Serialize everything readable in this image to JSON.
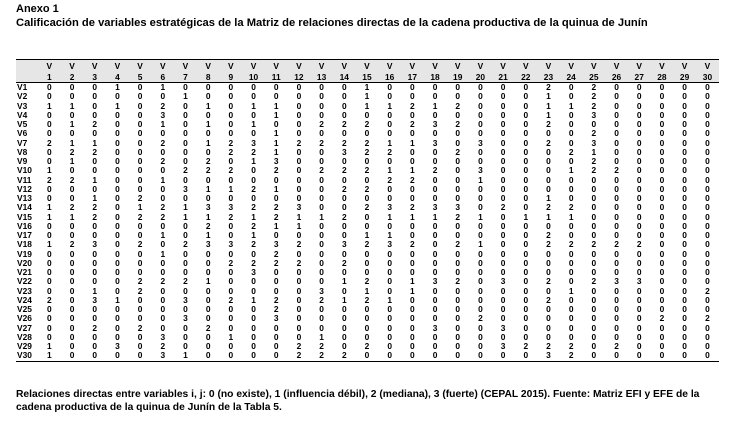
{
  "annex": "Anexo 1",
  "caption": "Calificación de variables estratégicas de la Matriz de relaciones directas de la cadena productiva de la quinua de Junín",
  "table": {
    "corner": "",
    "header_top": [
      "V",
      "V",
      "V",
      "V",
      "V",
      "V",
      "V",
      "V",
      "V",
      "V",
      "V",
      "V",
      "V",
      "V",
      "V",
      "V",
      "V",
      "V",
      "V",
      "V",
      "V",
      "V",
      "V",
      "V",
      "V",
      "V",
      "V",
      "V",
      "V",
      "V"
    ],
    "header_num": [
      "1",
      "2",
      "3",
      "4",
      "5",
      "6",
      "7",
      "8",
      "9",
      "10",
      "11",
      "12",
      "13",
      "14",
      "15",
      "16",
      "17",
      "18",
      "19",
      "20",
      "21",
      "22",
      "23",
      "24",
      "25",
      "26",
      "27",
      "28",
      "29",
      "30"
    ],
    "rows": [
      {
        "label": "V1",
        "values": [
          "0",
          "0",
          "0",
          "1",
          "0",
          "1",
          "0",
          "0",
          "0",
          "0",
          "0",
          "0",
          "0",
          "0",
          "1",
          "0",
          "0",
          "0",
          "0",
          "0",
          "0",
          "0",
          "2",
          "0",
          "2",
          "0",
          "0",
          "0",
          "0",
          "0"
        ]
      },
      {
        "label": "V2",
        "values": [
          "0",
          "0",
          "0",
          "0",
          "0",
          "0",
          "1",
          "0",
          "0",
          "0",
          "0",
          "0",
          "0",
          "0",
          "1",
          "0",
          "0",
          "0",
          "0",
          "0",
          "0",
          "0",
          "1",
          "0",
          "2",
          "0",
          "0",
          "0",
          "0",
          "0"
        ]
      },
      {
        "label": "V3",
        "values": [
          "1",
          "1",
          "0",
          "1",
          "0",
          "2",
          "0",
          "1",
          "0",
          "1",
          "1",
          "0",
          "0",
          "0",
          "1",
          "1",
          "2",
          "1",
          "2",
          "0",
          "0",
          "0",
          "1",
          "1",
          "2",
          "0",
          "0",
          "0",
          "0",
          "0"
        ]
      },
      {
        "label": "V4",
        "values": [
          "0",
          "0",
          "0",
          "0",
          "0",
          "3",
          "0",
          "0",
          "0",
          "0",
          "1",
          "0",
          "0",
          "0",
          "0",
          "0",
          "0",
          "0",
          "0",
          "0",
          "0",
          "0",
          "1",
          "0",
          "3",
          "0",
          "0",
          "0",
          "0",
          "0"
        ]
      },
      {
        "label": "V5",
        "values": [
          "0",
          "1",
          "2",
          "0",
          "0",
          "1",
          "0",
          "1",
          "0",
          "1",
          "0",
          "0",
          "2",
          "2",
          "2",
          "0",
          "2",
          "3",
          "2",
          "0",
          "0",
          "0",
          "2",
          "0",
          "0",
          "0",
          "0",
          "0",
          "0",
          "0"
        ]
      },
      {
        "label": "V6",
        "values": [
          "0",
          "0",
          "0",
          "0",
          "0",
          "0",
          "0",
          "0",
          "0",
          "0",
          "1",
          "0",
          "0",
          "0",
          "0",
          "0",
          "0",
          "0",
          "0",
          "0",
          "0",
          "0",
          "0",
          "0",
          "2",
          "0",
          "0",
          "0",
          "0",
          "0"
        ]
      },
      {
        "label": "V7",
        "values": [
          "2",
          "1",
          "1",
          "0",
          "0",
          "2",
          "0",
          "1",
          "2",
          "3",
          "1",
          "2",
          "2",
          "2",
          "2",
          "1",
          "1",
          "3",
          "0",
          "3",
          "0",
          "0",
          "2",
          "0",
          "3",
          "0",
          "0",
          "0",
          "0",
          "0"
        ]
      },
      {
        "label": "V8",
        "values": [
          "0",
          "2",
          "2",
          "0",
          "0",
          "0",
          "0",
          "0",
          "2",
          "2",
          "1",
          "0",
          "0",
          "3",
          "2",
          "2",
          "0",
          "0",
          "2",
          "0",
          "0",
          "0",
          "0",
          "2",
          "1",
          "0",
          "0",
          "0",
          "0",
          "0"
        ]
      },
      {
        "label": "V9",
        "values": [
          "0",
          "1",
          "0",
          "0",
          "0",
          "2",
          "0",
          "2",
          "0",
          "1",
          "3",
          "0",
          "0",
          "0",
          "0",
          "0",
          "0",
          "0",
          "0",
          "0",
          "0",
          "0",
          "0",
          "0",
          "2",
          "0",
          "0",
          "0",
          "0",
          "0"
        ]
      },
      {
        "label": "V10",
        "values": [
          "1",
          "0",
          "0",
          "0",
          "0",
          "0",
          "2",
          "2",
          "2",
          "0",
          "2",
          "0",
          "2",
          "2",
          "2",
          "1",
          "1",
          "2",
          "0",
          "3",
          "0",
          "0",
          "0",
          "1",
          "2",
          "2",
          "0",
          "0",
          "0",
          "0"
        ]
      },
      {
        "label": "V11",
        "values": [
          "2",
          "2",
          "1",
          "0",
          "0",
          "1",
          "0",
          "0",
          "0",
          "0",
          "0",
          "0",
          "0",
          "0",
          "0",
          "2",
          "2",
          "0",
          "0",
          "1",
          "0",
          "0",
          "0",
          "0",
          "0",
          "0",
          "0",
          "0",
          "0",
          "0"
        ]
      },
      {
        "label": "V12",
        "values": [
          "0",
          "0",
          "0",
          "0",
          "0",
          "0",
          "3",
          "1",
          "1",
          "2",
          "1",
          "0",
          "0",
          "2",
          "2",
          "0",
          "0",
          "0",
          "0",
          "0",
          "0",
          "0",
          "0",
          "0",
          "0",
          "0",
          "0",
          "0",
          "0",
          "0"
        ]
      },
      {
        "label": "V13",
        "values": [
          "0",
          "0",
          "1",
          "0",
          "2",
          "0",
          "0",
          "0",
          "0",
          "0",
          "0",
          "0",
          "0",
          "0",
          "0",
          "0",
          "0",
          "0",
          "0",
          "0",
          "0",
          "0",
          "1",
          "0",
          "0",
          "0",
          "0",
          "0",
          "0",
          "0"
        ]
      },
      {
        "label": "V14",
        "values": [
          "1",
          "2",
          "2",
          "0",
          "1",
          "2",
          "1",
          "3",
          "3",
          "2",
          "2",
          "3",
          "0",
          "0",
          "2",
          "3",
          "2",
          "3",
          "3",
          "0",
          "2",
          "0",
          "2",
          "2",
          "0",
          "0",
          "0",
          "0",
          "0",
          "0"
        ]
      },
      {
        "label": "V15",
        "values": [
          "1",
          "1",
          "2",
          "0",
          "2",
          "2",
          "1",
          "1",
          "2",
          "1",
          "2",
          "1",
          "1",
          "2",
          "0",
          "1",
          "1",
          "1",
          "2",
          "1",
          "0",
          "1",
          "1",
          "1",
          "0",
          "0",
          "0",
          "0",
          "0",
          "0"
        ]
      },
      {
        "label": "V16",
        "values": [
          "0",
          "0",
          "0",
          "0",
          "0",
          "0",
          "0",
          "2",
          "0",
          "2",
          "1",
          "1",
          "0",
          "0",
          "0",
          "0",
          "0",
          "0",
          "0",
          "0",
          "0",
          "0",
          "0",
          "0",
          "0",
          "0",
          "0",
          "0",
          "0",
          "0"
        ]
      },
      {
        "label": "V17",
        "values": [
          "0",
          "0",
          "0",
          "0",
          "0",
          "1",
          "0",
          "1",
          "0",
          "1",
          "0",
          "0",
          "0",
          "0",
          "1",
          "1",
          "0",
          "0",
          "0",
          "0",
          "0",
          "0",
          "2",
          "0",
          "0",
          "0",
          "0",
          "0",
          "0",
          "0"
        ]
      },
      {
        "label": "V18",
        "values": [
          "1",
          "2",
          "3",
          "0",
          "2",
          "0",
          "2",
          "3",
          "3",
          "2",
          "3",
          "2",
          "0",
          "3",
          "2",
          "3",
          "2",
          "0",
          "2",
          "1",
          "0",
          "0",
          "2",
          "2",
          "2",
          "2",
          "2",
          "0",
          "0",
          "0"
        ]
      },
      {
        "label": "V19",
        "values": [
          "0",
          "0",
          "0",
          "0",
          "0",
          "1",
          "0",
          "0",
          "0",
          "0",
          "2",
          "0",
          "0",
          "0",
          "0",
          "0",
          "0",
          "0",
          "0",
          "0",
          "0",
          "0",
          "0",
          "0",
          "0",
          "0",
          "0",
          "0",
          "0",
          "0"
        ]
      },
      {
        "label": "V20",
        "values": [
          "0",
          "0",
          "0",
          "0",
          "0",
          "0",
          "0",
          "0",
          "2",
          "2",
          "2",
          "2",
          "0",
          "2",
          "0",
          "0",
          "0",
          "0",
          "0",
          "0",
          "0",
          "0",
          "0",
          "0",
          "0",
          "0",
          "0",
          "0",
          "0",
          "0"
        ]
      },
      {
        "label": "V21",
        "values": [
          "0",
          "0",
          "0",
          "0",
          "0",
          "0",
          "0",
          "0",
          "0",
          "3",
          "0",
          "0",
          "0",
          "0",
          "0",
          "0",
          "0",
          "0",
          "0",
          "0",
          "0",
          "0",
          "0",
          "0",
          "0",
          "0",
          "0",
          "0",
          "0",
          "0"
        ]
      },
      {
        "label": "V22",
        "values": [
          "0",
          "0",
          "0",
          "0",
          "2",
          "2",
          "2",
          "1",
          "0",
          "0",
          "0",
          "0",
          "0",
          "1",
          "2",
          "0",
          "1",
          "3",
          "2",
          "0",
          "3",
          "0",
          "2",
          "0",
          "2",
          "3",
          "3",
          "0",
          "0",
          "0"
        ]
      },
      {
        "label": "V23",
        "values": [
          "0",
          "0",
          "1",
          "0",
          "2",
          "0",
          "0",
          "0",
          "0",
          "0",
          "0",
          "0",
          "3",
          "0",
          "1",
          "0",
          "1",
          "0",
          "0",
          "0",
          "0",
          "0",
          "0",
          "1",
          "0",
          "0",
          "0",
          "0",
          "0",
          "2"
        ]
      },
      {
        "label": "V24",
        "values": [
          "2",
          "0",
          "3",
          "1",
          "0",
          "0",
          "3",
          "0",
          "2",
          "1",
          "2",
          "0",
          "2",
          "1",
          "2",
          "1",
          "0",
          "0",
          "0",
          "0",
          "0",
          "0",
          "2",
          "0",
          "0",
          "0",
          "0",
          "0",
          "0",
          "0"
        ]
      },
      {
        "label": "V25",
        "values": [
          "0",
          "0",
          "0",
          "0",
          "0",
          "0",
          "0",
          "0",
          "0",
          "0",
          "2",
          "0",
          "0",
          "0",
          "0",
          "0",
          "0",
          "0",
          "0",
          "0",
          "0",
          "0",
          "0",
          "0",
          "0",
          "0",
          "0",
          "0",
          "0",
          "0"
        ]
      },
      {
        "label": "V26",
        "values": [
          "0",
          "0",
          "0",
          "0",
          "0",
          "0",
          "3",
          "0",
          "0",
          "0",
          "3",
          "0",
          "0",
          "0",
          "0",
          "0",
          "0",
          "0",
          "0",
          "2",
          "0",
          "0",
          "0",
          "0",
          "0",
          "0",
          "0",
          "2",
          "0",
          "2"
        ]
      },
      {
        "label": "V27",
        "values": [
          "0",
          "0",
          "2",
          "0",
          "2",
          "0",
          "0",
          "2",
          "0",
          "0",
          "0",
          "0",
          "0",
          "0",
          "0",
          "0",
          "0",
          "3",
          "0",
          "0",
          "3",
          "0",
          "0",
          "0",
          "0",
          "0",
          "0",
          "0",
          "0",
          "0"
        ]
      },
      {
        "label": "V28",
        "values": [
          "0",
          "0",
          "0",
          "0",
          "0",
          "3",
          "0",
          "0",
          "1",
          "0",
          "0",
          "0",
          "1",
          "0",
          "0",
          "0",
          "0",
          "0",
          "0",
          "0",
          "0",
          "0",
          "0",
          "0",
          "0",
          "0",
          "0",
          "0",
          "0",
          "0"
        ]
      },
      {
        "label": "V29",
        "values": [
          "1",
          "0",
          "0",
          "3",
          "0",
          "2",
          "0",
          "0",
          "0",
          "0",
          "0",
          "2",
          "2",
          "0",
          "2",
          "0",
          "0",
          "0",
          "0",
          "0",
          "3",
          "2",
          "2",
          "2",
          "0",
          "2",
          "0",
          "0",
          "0",
          "0"
        ]
      },
      {
        "label": "V30",
        "values": [
          "1",
          "0",
          "0",
          "0",
          "0",
          "3",
          "1",
          "0",
          "0",
          "0",
          "0",
          "2",
          "2",
          "2",
          "0",
          "0",
          "0",
          "0",
          "0",
          "0",
          "0",
          "0",
          "3",
          "2",
          "0",
          "0",
          "0",
          "0",
          "0",
          "0"
        ]
      }
    ]
  },
  "footnote": "Relaciones directas entre variables i, j: 0 (no existe), 1 (influencia débil), 2 (mediana), 3 (fuerte) (CEPAL 2015). Fuente: Matriz EFI y EFE de la cadena productiva de la quinua de Junín de la Tabla 5."
}
